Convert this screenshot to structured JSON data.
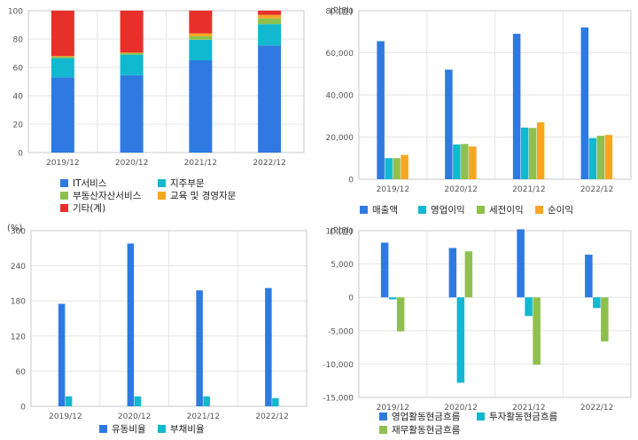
{
  "colors": {
    "blue": "#2e7ae0",
    "cyan": "#12b8cf",
    "green": "#8ec04d",
    "orange": "#f6a623",
    "red": "#e8302a",
    "grid": "#e6e6e6",
    "frame": "#c9c9c9",
    "tick": "#555555"
  },
  "chart_data": [
    {
      "id": "revenue-mix",
      "type": "bar",
      "stacked": true,
      "categories": [
        "2019/12",
        "2020/12",
        "2021/12",
        "2022/12"
      ],
      "ylim": [
        0,
        100
      ],
      "yticks": [
        "0",
        "20",
        "40",
        "60",
        "80",
        "100"
      ],
      "yticks_values": [
        0,
        20,
        40,
        60,
        80,
        100
      ],
      "grid": true,
      "legend_position": "bottom",
      "series": [
        {
          "name": "IT서비스",
          "color": "#2e7ae0",
          "values": [
            53,
            54.5,
            65,
            75.5
          ]
        },
        {
          "name": "지주부문",
          "color": "#12b8cf",
          "values": [
            13.5,
            14.5,
            14.5,
            15
          ]
        },
        {
          "name": "부동산자산서비스",
          "color": "#8ec04d",
          "values": [
            1,
            1,
            2.5,
            4
          ]
        },
        {
          "name": "교육 및 경영자문",
          "color": "#f6a623",
          "values": [
            0.5,
            0.5,
            2,
            2.5
          ]
        },
        {
          "name": "기타(계)",
          "color": "#e8302a",
          "values": [
            32,
            29.5,
            16,
            3
          ]
        }
      ]
    },
    {
      "id": "earnings",
      "type": "bar",
      "unit_label": "(억원)",
      "categories": [
        "2019/12",
        "2020/12",
        "2021/12",
        "2022/12"
      ],
      "ylim": [
        0,
        80000
      ],
      "yticks": [
        "0",
        "20,000",
        "40,000",
        "60,000",
        "80,000"
      ],
      "yticks_values": [
        0,
        20000,
        40000,
        60000,
        80000
      ],
      "grid": true,
      "legend_position": "bottom",
      "series": [
        {
          "name": "매출액",
          "color": "#2e7ae0",
          "values": [
            65500,
            52000,
            69000,
            72000
          ]
        },
        {
          "name": "영업이익",
          "color": "#12b8cf",
          "values": [
            10000,
            16500,
            24500,
            19500
          ]
        },
        {
          "name": "세전이익",
          "color": "#8ec04d",
          "values": [
            10000,
            16700,
            24300,
            20600
          ]
        },
        {
          "name": "순이익",
          "color": "#f6a623",
          "values": [
            11500,
            15500,
            27000,
            21000
          ]
        }
      ]
    },
    {
      "id": "ratios",
      "type": "bar",
      "unit_label": "(%)",
      "categories": [
        "2019/12",
        "2020/12",
        "2021/12",
        "2022/12"
      ],
      "ylim": [
        0,
        300
      ],
      "yticks": [
        "0",
        "60",
        "120",
        "180",
        "240",
        "300"
      ],
      "yticks_values": [
        0,
        60,
        120,
        180,
        240,
        300
      ],
      "grid": true,
      "legend_position": "bottom",
      "series": [
        {
          "name": "유동비율",
          "color": "#2e7ae0",
          "values": [
            175,
            278,
            198,
            202
          ]
        },
        {
          "name": "부채비율",
          "color": "#12b8cf",
          "values": [
            17,
            17,
            17,
            14
          ]
        }
      ]
    },
    {
      "id": "cashflow",
      "type": "bar",
      "unit_label": "(억원)",
      "categories": [
        "2019/12",
        "2020/12",
        "2021/12",
        "2022/12"
      ],
      "ylim": [
        -15000,
        10000
      ],
      "yticks": [
        "-15,000",
        "-10,000",
        "-5,000",
        "0",
        "5,000",
        "10,000"
      ],
      "yticks_values": [
        -15000,
        -10000,
        -5000,
        0,
        5000,
        10000
      ],
      "grid": true,
      "legend_position": "bottom",
      "series": [
        {
          "name": "영업활동현금흐름",
          "color": "#2e7ae0",
          "values": [
            8200,
            7400,
            10200,
            6400
          ]
        },
        {
          "name": "투자활동현금흐름",
          "color": "#12b8cf",
          "values": [
            -300,
            -12800,
            -2800,
            -1600
          ]
        },
        {
          "name": "재무활동현금흐름",
          "color": "#8ec04d",
          "values": [
            -5100,
            6900,
            -10100,
            -6600
          ]
        }
      ]
    }
  ]
}
